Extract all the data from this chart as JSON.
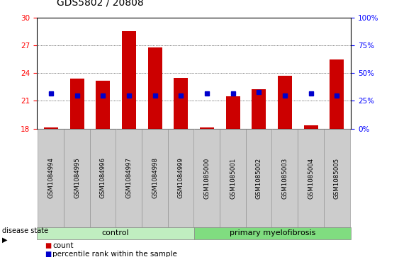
{
  "title": "GDS5802 / 20808",
  "samples": [
    "GSM1084994",
    "GSM1084995",
    "GSM1084996",
    "GSM1084997",
    "GSM1084998",
    "GSM1084999",
    "GSM1085000",
    "GSM1085001",
    "GSM1085002",
    "GSM1085003",
    "GSM1085004",
    "GSM1085005"
  ],
  "bar_heights": [
    18.1,
    23.4,
    23.2,
    28.55,
    26.8,
    23.5,
    18.1,
    21.5,
    22.3,
    23.75,
    18.35,
    25.5
  ],
  "percentile_ranks": [
    32,
    30,
    30,
    30,
    30,
    30,
    32,
    32,
    33,
    30,
    32,
    30
  ],
  "ylim": [
    18,
    30
  ],
  "yticks": [
    18,
    21,
    24,
    27,
    30
  ],
  "right_yticks": [
    0,
    25,
    50,
    75,
    100
  ],
  "bar_color": "#cc0000",
  "blue_color": "#0000cc",
  "bar_bottom": 18.0,
  "control_samples": 6,
  "control_label": "control",
  "disease_label": "primary myelofibrosis",
  "legend_count": "count",
  "legend_pct": "percentile rank within the sample",
  "disease_state_label": "disease state",
  "control_color": "#c0eec0",
  "disease_color": "#80dd80",
  "tick_label_bg": "#cccccc",
  "title_fontsize": 10,
  "tick_fontsize": 7.5,
  "sample_fontsize": 6.2
}
